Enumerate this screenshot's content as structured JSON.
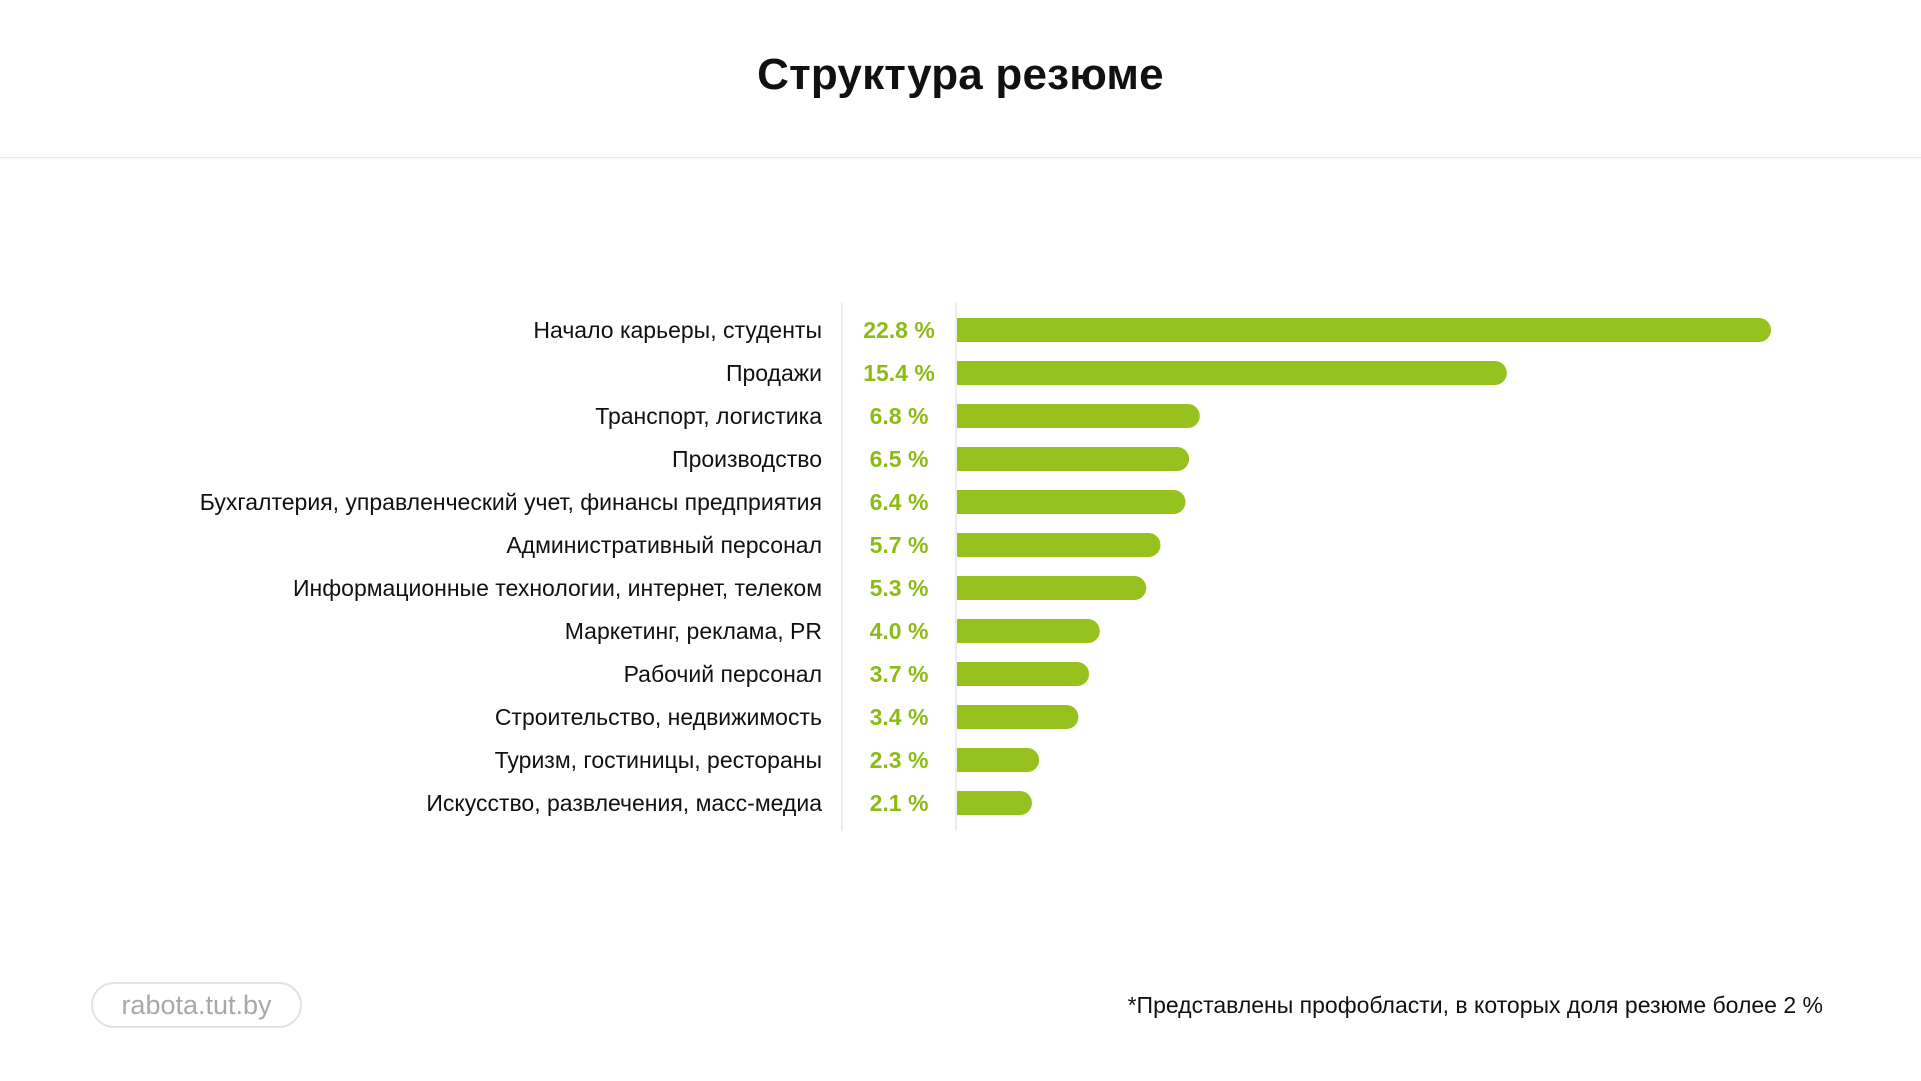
{
  "title": "Структура резюме",
  "brand": "rabota.tut.by",
  "footnote": "*Представлены профобласти, в которых доля резюме более 2 %",
  "colors": {
    "bar": "#96c11f",
    "value_text": "#8dbb16",
    "label_text": "#111111",
    "divider": "#e6e6e6"
  },
  "chart_data": {
    "type": "bar",
    "orientation": "horizontal",
    "title": "Структура резюме",
    "categories": [
      "Начало карьеры, студенты",
      "Продажи",
      "Транспорт, логистика",
      "Производство",
      "Бухгалтерия, управленческий учет, финансы предприятия",
      "Административный персонал",
      "Информационные технологии, интернет, телеком",
      "Маркетинг, реклама, PR",
      "Рабочий персонал",
      "Строительство, недвижимость",
      "Туризм, гостиницы, рестораны",
      "Искусство, развлечения, масс-медиа"
    ],
    "values": [
      22.8,
      15.4,
      6.8,
      6.5,
      6.4,
      5.7,
      5.3,
      4.0,
      3.7,
      3.4,
      2.3,
      2.1
    ],
    "value_labels": [
      "22.8 %",
      "15.4 %",
      "6.8 %",
      "6.5 %",
      "6.4 %",
      "5.7 %",
      "5.3 %",
      "4.0 %",
      "3.7 %",
      "3.4 %",
      "2.3 %",
      "2.1 %"
    ],
    "unit": "%",
    "xlim": [
      0,
      22.8
    ],
    "grid": false
  }
}
